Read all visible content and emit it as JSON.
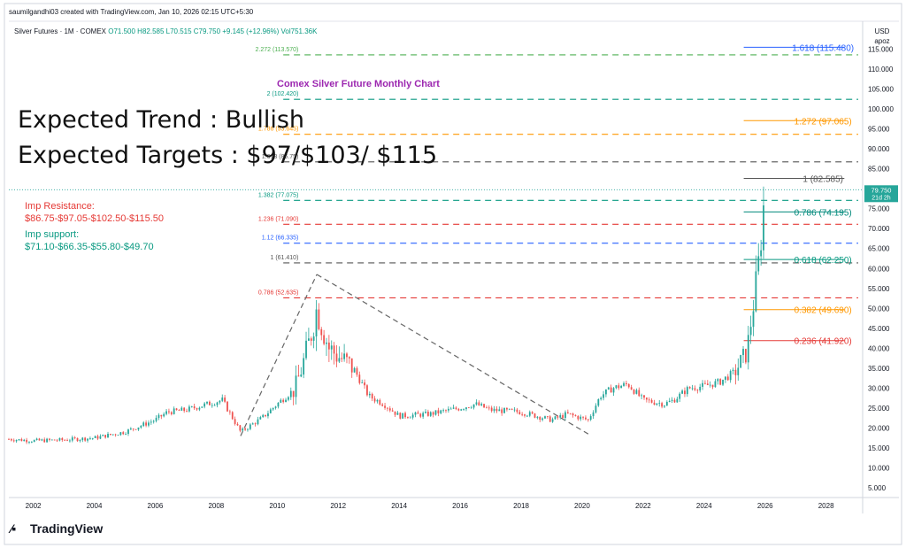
{
  "header": {
    "created": "saumilgandhi03 created with TradingView.com, Jan 10, 2026 02:15 UTC+5:30",
    "symbol": "Silver Futures · 1M · COMEX",
    "ohlc": "O71.500 H82.585 L70.515 C79.750 +9.145 (+12.96%) Vol751.36K",
    "currency": "USD",
    "scale": "apoz"
  },
  "annotations": {
    "subtitle": "Comex Silver Future Monthly Chart",
    "trend": "Expected Trend : Bullish",
    "targets": "Expected Targets : $97/$103/ $115",
    "resistance_title": "Imp Resistance:",
    "resistance_values": "$86.75-$97.05-$102.50-$115.50",
    "support_title": "Imp support:",
    "support_values": "$71.10-$66.35-$55.80-$49.70"
  },
  "price_tag": {
    "value": "79.750",
    "time": "21d 2h"
  },
  "footer": {
    "brand": "TradingView"
  },
  "colors": {
    "up": "#26a69a",
    "down": "#ef5350",
    "resistance": "#e53935",
    "support": "#089981"
  },
  "chart_data": {
    "type": "line",
    "ylim": [
      3,
      122
    ],
    "xlim": [
      2001.2,
      2029.2
    ],
    "y_ticks": [
      5,
      10,
      15,
      20,
      25,
      30,
      35,
      40,
      45,
      50,
      55,
      60,
      65,
      70,
      75,
      80,
      85,
      90,
      95,
      100,
      105,
      110,
      115
    ],
    "y_tick_labels": [
      "5.000",
      "10.000",
      "15.000",
      "20.000",
      "25.000",
      "30.000",
      "35.000",
      "40.000",
      "45.000",
      "50.000",
      "55.000",
      "60.000",
      "65.000",
      "70.000",
      "75.000",
      "80.000",
      "85.000",
      "90.000",
      "95.000",
      "100.000",
      "105.000",
      "110.000",
      "115.000"
    ],
    "x_ticks": [
      2002,
      2004,
      2006,
      2008,
      2010,
      2012,
      2014,
      2016,
      2018,
      2020,
      2022,
      2024,
      2026,
      2028
    ],
    "x_tick_labels": [
      "2002",
      "2004",
      "2006",
      "2008",
      "2010",
      "2012",
      "2014",
      "2016",
      "2018",
      "2020",
      "2022",
      "2024",
      "2026",
      "2028"
    ],
    "price_path": {
      "x": [
        2001.2,
        2002.0,
        2003.0,
        2004.0,
        2005.0,
        2006.0,
        2006.4,
        2007.0,
        2008.2,
        2008.8,
        2009.5,
        2010.0,
        2010.6,
        2011.0,
        2011.3,
        2011.7,
        2012.0,
        2012.5,
        2013.0,
        2013.5,
        2014.0,
        2015.0,
        2016.0,
        2016.5,
        2017.0,
        2018.0,
        2019.0,
        2019.5,
        2020.2,
        2020.6,
        2021.0,
        2021.5,
        2022.0,
        2022.7,
        2023.0,
        2023.5,
        2024.0,
        2024.5,
        2025.0,
        2025.4,
        2025.6,
        2025.8,
        2026.0
      ],
      "y": [
        17.2,
        16.8,
        17.0,
        17.5,
        19.0,
        22.0,
        24.0,
        24.5,
        27.0,
        19.0,
        22.5,
        26.0,
        30.0,
        40.0,
        50.0,
        40.0,
        38.0,
        35.0,
        28.0,
        26.0,
        23.0,
        23.5,
        25.0,
        26.0,
        24.5,
        24.0,
        22.0,
        23.5,
        22.0,
        28.0,
        30.0,
        31.0,
        27.0,
        26.0,
        27.0,
        30.0,
        30.5,
        31.5,
        34.0,
        39.0,
        50.0,
        62.0,
        79.75
      ]
    },
    "trendlines": [
      {
        "x": [
          2008.8,
          2011.3
        ],
        "y": [
          18.0,
          58.5
        ]
      },
      {
        "x": [
          2011.3,
          2020.2
        ],
        "y": [
          58.5,
          18.5
        ]
      }
    ],
    "fib_left": [
      {
        "label": "2.272 (113.570)",
        "value": 113.57,
        "color": "#4caf50"
      },
      {
        "label": "2 (102.420)",
        "value": 102.42,
        "color": "#089981"
      },
      {
        "label": "1.786 (93.645)",
        "value": 93.645,
        "color": "#ff9800"
      },
      {
        "label": "1.618 (86.75)",
        "value": 86.75,
        "color": "#555555"
      },
      {
        "label": "1.382 (77.075)",
        "value": 77.075,
        "color": "#089981"
      },
      {
        "label": "1.236 (71.090)",
        "value": 71.09,
        "color": "#e53935"
      },
      {
        "label": "1.12 (66.335)",
        "value": 66.335,
        "color": "#2962ff"
      },
      {
        "label": "1 (61.410)",
        "value": 61.41,
        "color": "#555555"
      },
      {
        "label": "0.786 (52.635)",
        "value": 52.635,
        "color": "#e53935"
      }
    ],
    "fib_right": [
      {
        "label": "1.618 (115.480)",
        "value": 115.48,
        "color": "#2962ff"
      },
      {
        "label": "1.272 (97.065)",
        "value": 97.065,
        "color": "#ff9800"
      },
      {
        "label": "1 (82.585)",
        "value": 82.585,
        "color": "#555555"
      },
      {
        "label": "0.786 (74.195)",
        "value": 74.195,
        "color": "#00897b"
      },
      {
        "label": "0.618 (62.250)",
        "value": 62.25,
        "color": "#089981"
      },
      {
        "label": "0.382 (49.690)",
        "value": 49.69,
        "color": "#ff9800"
      },
      {
        "label": "0.236 (41.920)",
        "value": 41.92,
        "color": "#e53935"
      }
    ],
    "last_price": 79.75
  }
}
